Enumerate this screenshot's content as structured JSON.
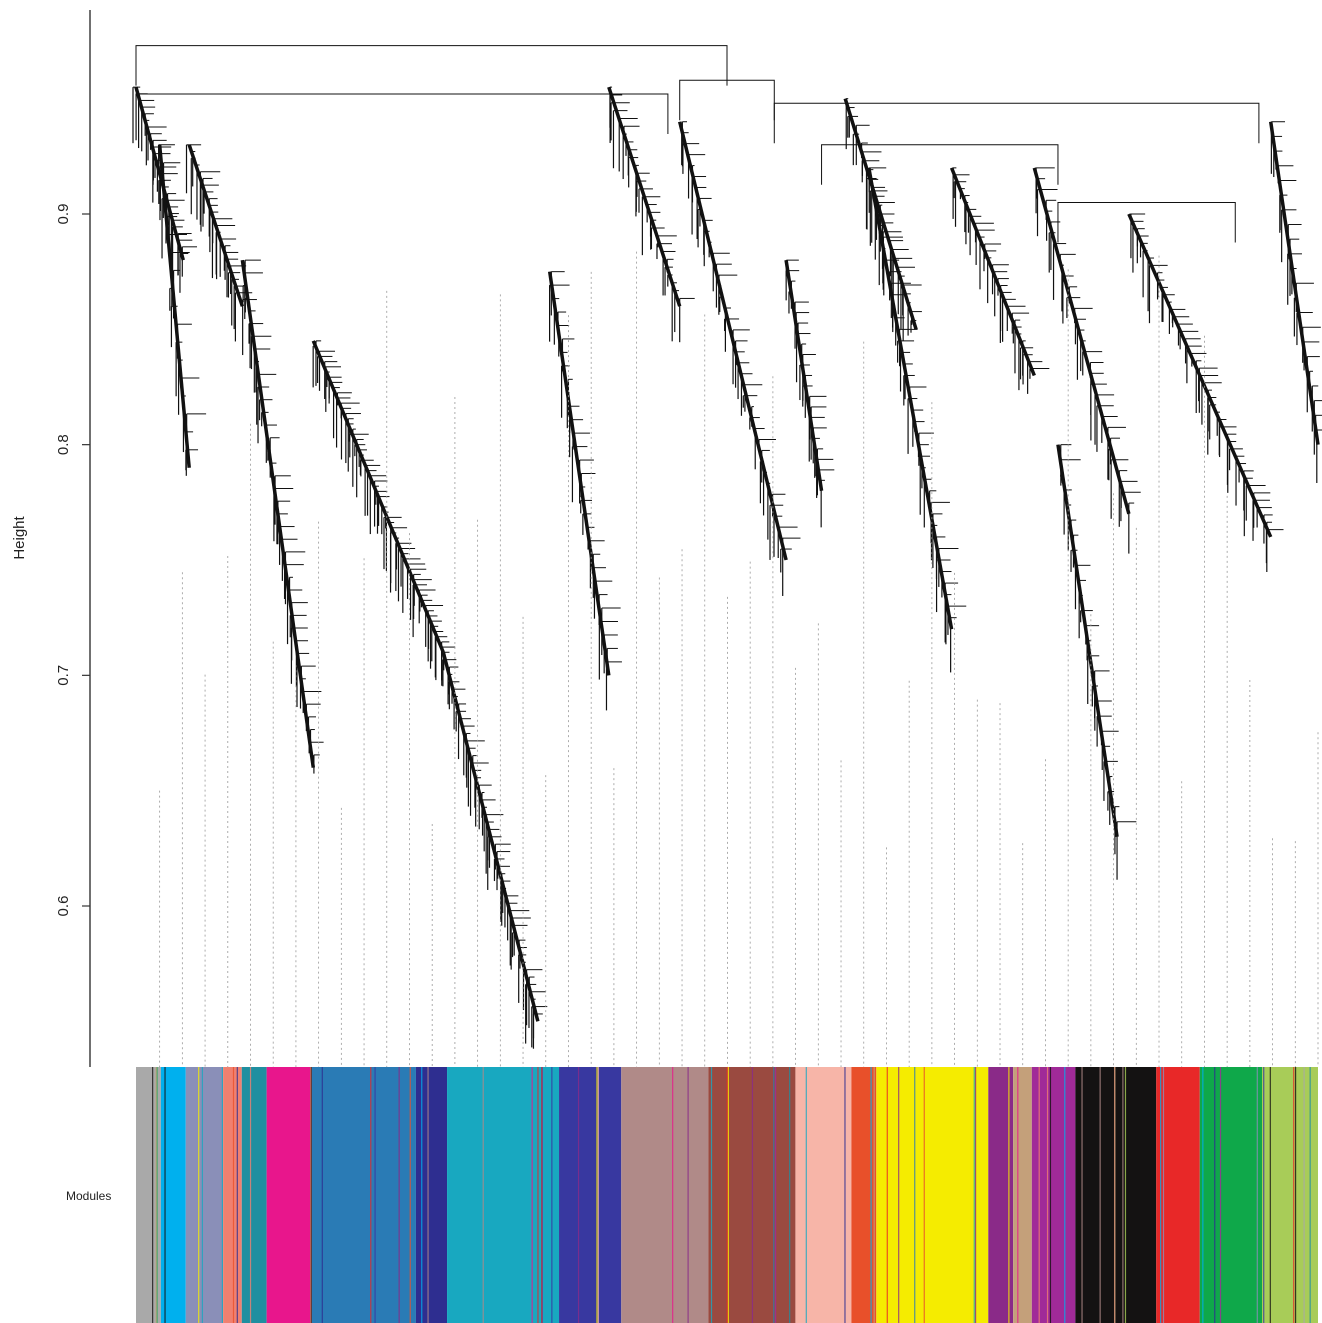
{
  "chart_data": {
    "type": "dendrogram",
    "ylabel": "Height",
    "ylim": [
      0.53,
      0.98
    ],
    "yticks": [
      0.6,
      0.7,
      0.8,
      0.9
    ],
    "ytick_labels": [
      "0.6",
      "0.7",
      "0.8",
      "0.9"
    ],
    "color_bar_label": "Modules",
    "top_merge_height": 0.973,
    "module_merges": [
      {
        "from": 0.0,
        "to": 0.5,
        "height": 0.973
      },
      {
        "from": 0.0,
        "to": 0.45,
        "height": 0.952
      },
      {
        "from": 0.46,
        "to": 0.54,
        "height": 0.958
      },
      {
        "from": 0.54,
        "to": 0.95,
        "height": 0.948
      },
      {
        "from": 0.58,
        "to": 0.78,
        "height": 0.93
      },
      {
        "from": 0.78,
        "to": 0.93,
        "height": 0.905
      }
    ],
    "modules": [
      {
        "name": "grey",
        "color": "#a9a9a9"
      },
      {
        "name": "deepskyblue",
        "color": "#00b0ee"
      },
      {
        "name": "lightsteelblue",
        "color": "#8a8fb8"
      },
      {
        "name": "salmon",
        "color": "#f08070"
      },
      {
        "name": "darkcyan",
        "color": "#1f8fa0"
      },
      {
        "name": "deeppink",
        "color": "#e8168c"
      },
      {
        "name": "steelblue",
        "color": "#2a7bb5"
      },
      {
        "name": "midnightblue",
        "color": "#2e2e90"
      },
      {
        "name": "lightseagreen",
        "color": "#18a8c0"
      },
      {
        "name": "darkslateblue",
        "color": "#3838a0"
      },
      {
        "name": "rosybrown",
        "color": "#b08a88"
      },
      {
        "name": "brown",
        "color": "#9a4a40"
      },
      {
        "name": "lightpink",
        "color": "#f7b5a8"
      },
      {
        "name": "orangered",
        "color": "#e8502a"
      },
      {
        "name": "yellow",
        "color": "#f5ec00"
      },
      {
        "name": "darkmagenta",
        "color": "#8a2a88"
      },
      {
        "name": "tan",
        "color": "#c4a07a"
      },
      {
        "name": "magenta",
        "color": "#a02a98"
      },
      {
        "name": "black",
        "color": "#141212"
      },
      {
        "name": "red",
        "color": "#e82828"
      },
      {
        "name": "green",
        "color": "#0fa84a"
      },
      {
        "name": "greenyellow",
        "color": "#a8cc58"
      }
    ]
  }
}
